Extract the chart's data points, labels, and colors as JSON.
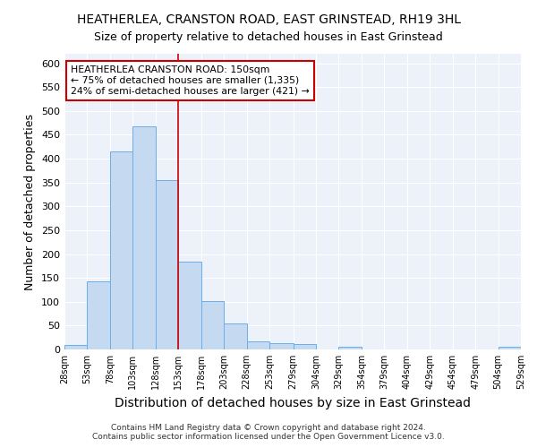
{
  "title": "HEATHERLEA, CRANSTON ROAD, EAST GRINSTEAD, RH19 3HL",
  "subtitle": "Size of property relative to detached houses in East Grinstead",
  "xlabel": "Distribution of detached houses by size in East Grinstead",
  "ylabel": "Number of detached properties",
  "footnote": "Contains HM Land Registry data © Crown copyright and database right 2024.\nContains public sector information licensed under the Open Government Licence v3.0.",
  "bar_edges": [
    28,
    53,
    78,
    103,
    128,
    153,
    178,
    203,
    228,
    253,
    279,
    304,
    329,
    354,
    379,
    404,
    429,
    454,
    479,
    504,
    529
  ],
  "bar_heights": [
    10,
    143,
    415,
    467,
    355,
    185,
    102,
    54,
    17,
    14,
    12,
    0,
    6,
    0,
    0,
    0,
    0,
    0,
    0,
    5
  ],
  "bar_color": "#c5d9f0",
  "bar_edge_color": "#6aaee8",
  "vline_x": 153,
  "vline_color": "#cc0000",
  "annotation_title": "HEATHERLEA CRANSTON ROAD: 150sqm",
  "annotation_line1": "← 75% of detached houses are smaller (1,335)",
  "annotation_line2": "24% of semi-detached houses are larger (421) →",
  "annotation_box_color": "#cc0000",
  "ylim": [
    0,
    620
  ],
  "yticks": [
    0,
    50,
    100,
    150,
    200,
    250,
    300,
    350,
    400,
    450,
    500,
    550,
    600
  ],
  "bg_color": "#edf2fa",
  "grid_color": "#ffffff",
  "fig_bg_color": "#ffffff",
  "title_fontsize": 10,
  "subtitle_fontsize": 9,
  "axis_label_fontsize": 9,
  "tick_fontsize": 8
}
